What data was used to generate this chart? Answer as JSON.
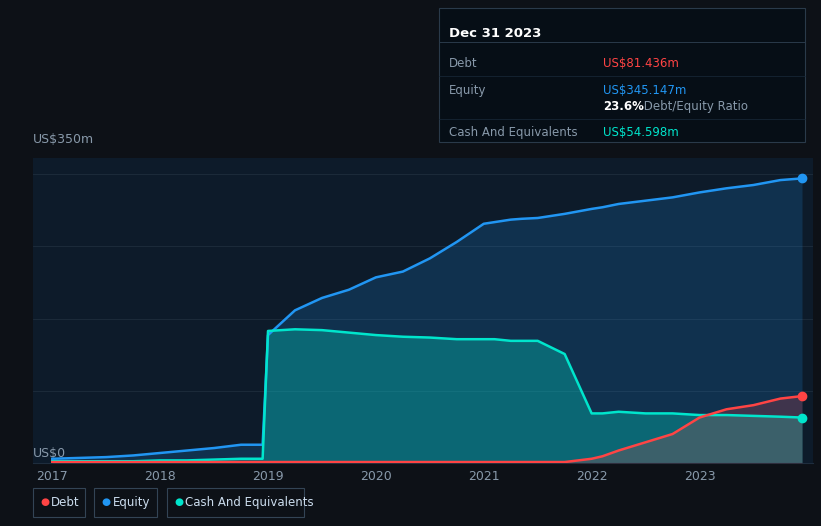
{
  "bg_color": "#0d1117",
  "plot_bg_color": "#0d1b2a",
  "grid_color": "#1e2d3d",
  "title_box_date": "Dec 31 2023",
  "ylabel_text": "US$350m",
  "ylabel0_text": "US$0",
  "debt_color": "#ff4444",
  "equity_color": "#2196f3",
  "cash_color": "#00e5cc",
  "debt_label": "US$81.436m",
  "equity_label": "US$345.147m",
  "ratio_label": "23.6%",
  "cash_label": "US$54.598m",
  "years": [
    2017.0,
    2017.25,
    2017.5,
    2017.75,
    2018.0,
    2018.25,
    2018.5,
    2018.75,
    2018.95,
    2019.0,
    2019.25,
    2019.5,
    2019.75,
    2020.0,
    2020.25,
    2020.5,
    2020.75,
    2021.0,
    2021.1,
    2021.25,
    2021.35,
    2021.5,
    2021.75,
    2022.0,
    2022.1,
    2022.25,
    2022.5,
    2022.75,
    2023.0,
    2023.25,
    2023.5,
    2023.75,
    2023.95
  ],
  "equity": [
    5,
    6,
    7,
    9,
    12,
    15,
    18,
    22,
    22,
    155,
    185,
    200,
    210,
    225,
    232,
    248,
    268,
    290,
    292,
    295,
    296,
    297,
    302,
    308,
    310,
    314,
    318,
    322,
    328,
    333,
    337,
    343,
    345
  ],
  "cash": [
    2,
    2,
    2,
    2,
    3,
    3,
    4,
    5,
    5,
    160,
    162,
    161,
    158,
    155,
    153,
    152,
    150,
    150,
    150,
    148,
    148,
    148,
    132,
    60,
    60,
    62,
    60,
    60,
    58,
    58,
    57,
    56,
    55
  ],
  "debt": [
    1,
    1,
    1,
    1,
    1,
    1,
    1,
    1,
    1,
    1,
    1,
    1,
    1,
    1,
    1,
    1,
    1,
    1,
    1,
    1,
    1,
    1,
    1,
    5,
    8,
    15,
    25,
    35,
    55,
    65,
    70,
    78,
    81
  ],
  "xlim": [
    2016.82,
    2024.05
  ],
  "ylim": [
    0,
    370
  ],
  "xticks": [
    2017,
    2018,
    2019,
    2020,
    2021,
    2022,
    2023
  ],
  "figsize": [
    8.21,
    5.26
  ],
  "dpi": 100
}
